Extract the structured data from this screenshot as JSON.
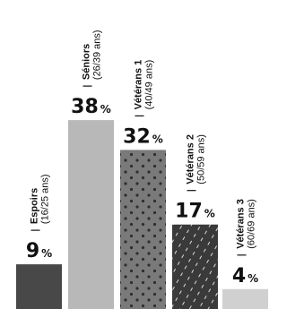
{
  "chart_data": {
    "type": "bar",
    "title": "",
    "xlabel": "",
    "ylabel": "",
    "unit": "%",
    "ylim": [
      0,
      40
    ],
    "grid": false,
    "legend": "none",
    "categories": [
      {
        "name": "Espoirs",
        "age": "(16/25 ans)",
        "value": 9,
        "fill": "#484848",
        "pattern": "solid"
      },
      {
        "name": "Séniors",
        "age": "(26/39 ans)",
        "value": 38,
        "fill": "#b8b8b8",
        "pattern": "solid"
      },
      {
        "name": "Vétérans 1",
        "age": "(40/49 ans)",
        "value": 32,
        "fill": "#7a7a7a",
        "pattern": "dots"
      },
      {
        "name": "Vétérans 2",
        "age": "(50/59 ans)",
        "value": 17,
        "fill": "#3a3a3a",
        "pattern": "diagonal-dashes"
      },
      {
        "name": "Vétérans 3",
        "age": "(60/69 ans)",
        "value": 4,
        "fill": "#d0d0d0",
        "pattern": "solid"
      }
    ],
    "value_labels": [
      "9",
      "38",
      "32",
      "17",
      "4"
    ]
  }
}
